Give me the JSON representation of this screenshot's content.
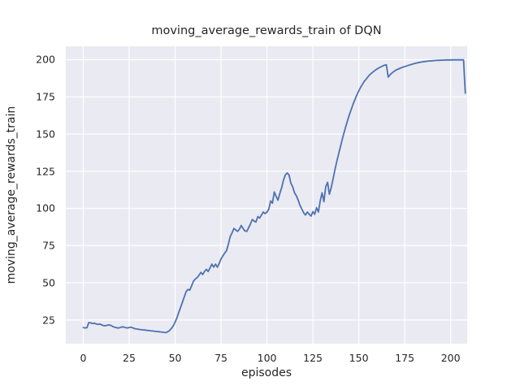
{
  "title": "moving_average_rewards_train of DQN",
  "chart_data": {
    "type": "line",
    "title": "moving_average_rewards_train of DQN",
    "xlabel": "episodes",
    "ylabel": "moving_average_rewards_train",
    "xlim": [
      -9.5,
      209
    ],
    "ylim": [
      9,
      209
    ],
    "xticks": [
      0,
      25,
      50,
      75,
      100,
      125,
      150,
      175,
      200
    ],
    "yticks": [
      25,
      50,
      75,
      100,
      125,
      150,
      175,
      200
    ],
    "grid": true,
    "legend": "none",
    "style": {
      "plot_bg": "#EAEAF2",
      "grid_color": "#FFFFFF",
      "line_color": "#4C72B0",
      "text_color": "#262626",
      "figure_bg": "#FFFFFF",
      "line_width": 1.8
    },
    "series": [
      {
        "name": "moving_average_rewards_train",
        "points": [
          [
            0,
            19.8
          ],
          [
            1,
            19.6
          ],
          [
            2,
            19.7
          ],
          [
            3,
            23.2
          ],
          [
            4,
            23.0
          ],
          [
            5,
            22.6
          ],
          [
            6,
            22.8
          ],
          [
            7,
            22.2
          ],
          [
            8,
            22.0
          ],
          [
            9,
            22.3
          ],
          [
            10,
            21.6
          ],
          [
            11,
            21.2
          ],
          [
            12,
            21.0
          ],
          [
            13,
            21.4
          ],
          [
            14,
            21.6
          ],
          [
            15,
            21.3
          ],
          [
            16,
            20.6
          ],
          [
            17,
            20.1
          ],
          [
            18,
            19.8
          ],
          [
            19,
            19.5
          ],
          [
            20,
            19.8
          ],
          [
            21,
            20.3
          ],
          [
            22,
            20.2
          ],
          [
            23,
            19.8
          ],
          [
            24,
            19.6
          ],
          [
            25,
            19.9
          ],
          [
            26,
            20.1
          ],
          [
            27,
            19.6
          ],
          [
            28,
            19.1
          ],
          [
            29,
            18.9
          ],
          [
            30,
            18.7
          ],
          [
            31,
            18.5
          ],
          [
            32,
            18.4
          ],
          [
            33,
            18.2
          ],
          [
            34,
            18.1
          ],
          [
            35,
            17.9
          ],
          [
            36,
            17.8
          ],
          [
            37,
            17.6
          ],
          [
            38,
            17.5
          ],
          [
            39,
            17.3
          ],
          [
            40,
            17.2
          ],
          [
            41,
            17.1
          ],
          [
            42,
            16.9
          ],
          [
            43,
            16.8
          ],
          [
            44,
            16.6
          ],
          [
            45,
            16.5
          ],
          [
            46,
            17.1
          ],
          [
            47,
            17.9
          ],
          [
            48,
            19.3
          ],
          [
            49,
            21.0
          ],
          [
            50,
            23.5
          ],
          [
            51,
            26.5
          ],
          [
            52,
            30.0
          ],
          [
            53,
            33.5
          ],
          [
            54,
            37.0
          ],
          [
            55,
            40.5
          ],
          [
            56,
            44.0
          ],
          [
            57,
            45.5
          ],
          [
            58,
            45.0
          ],
          [
            59,
            48.0
          ],
          [
            60,
            51.0
          ],
          [
            61,
            52.5
          ],
          [
            62,
            53.5
          ],
          [
            63,
            55.0
          ],
          [
            64,
            57.0
          ],
          [
            65,
            55.5
          ],
          [
            66,
            57.5
          ],
          [
            67,
            59.0
          ],
          [
            68,
            57.5
          ],
          [
            69,
            60.0
          ],
          [
            70,
            62.5
          ],
          [
            71,
            60.5
          ],
          [
            72,
            62.5
          ],
          [
            73,
            60.5
          ],
          [
            74,
            63.0
          ],
          [
            75,
            66.0
          ],
          [
            76,
            68.0
          ],
          [
            77,
            70.0
          ],
          [
            78,
            71.5
          ],
          [
            79,
            76.0
          ],
          [
            80,
            81.0
          ],
          [
            81,
            83.5
          ],
          [
            82,
            86.5
          ],
          [
            83,
            85.5
          ],
          [
            84,
            84.5
          ],
          [
            85,
            86.0
          ],
          [
            86,
            88.5
          ],
          [
            87,
            86.5
          ],
          [
            88,
            84.8
          ],
          [
            89,
            84.5
          ],
          [
            90,
            87.0
          ],
          [
            91,
            89.5
          ],
          [
            92,
            92.5
          ],
          [
            93,
            91.5
          ],
          [
            94,
            90.8
          ],
          [
            95,
            94.5
          ],
          [
            96,
            93.5
          ],
          [
            97,
            95.5
          ],
          [
            98,
            97.5
          ],
          [
            99,
            96.5
          ],
          [
            100,
            97.5
          ],
          [
            101,
            99.5
          ],
          [
            102,
            105.0
          ],
          [
            103,
            103.5
          ],
          [
            104,
            111.0
          ],
          [
            105,
            108.0
          ],
          [
            106,
            105.5
          ],
          [
            107,
            110.0
          ],
          [
            108,
            114.0
          ],
          [
            109,
            119.0
          ],
          [
            110,
            122.5
          ],
          [
            111,
            123.8
          ],
          [
            112,
            122.5
          ],
          [
            113,
            117.0
          ],
          [
            114,
            114.5
          ],
          [
            115,
            110.5
          ],
          [
            116,
            108.5
          ],
          [
            117,
            105.5
          ],
          [
            118,
            102.0
          ],
          [
            119,
            99.5
          ],
          [
            120,
            97.0
          ],
          [
            121,
            95.5
          ],
          [
            122,
            97.5
          ],
          [
            123,
            96.0
          ],
          [
            124,
            94.8
          ],
          [
            125,
            97.8
          ],
          [
            126,
            96.0
          ],
          [
            127,
            100.5
          ],
          [
            128,
            97.5
          ],
          [
            129,
            105.0
          ],
          [
            130,
            110.5
          ],
          [
            131,
            104.5
          ],
          [
            132,
            114.5
          ],
          [
            133,
            117.5
          ],
          [
            134,
            109.5
          ],
          [
            135,
            114.0
          ],
          [
            136,
            120.0
          ],
          [
            137,
            126.0
          ],
          [
            138,
            131.5
          ],
          [
            139,
            136.5
          ],
          [
            140,
            141.5
          ],
          [
            141,
            146.5
          ],
          [
            142,
            151.0
          ],
          [
            143,
            155.5
          ],
          [
            144,
            159.5
          ],
          [
            145,
            163.5
          ],
          [
            146,
            167.0
          ],
          [
            147,
            170.5
          ],
          [
            148,
            173.5
          ],
          [
            149,
            176.5
          ],
          [
            150,
            179.0
          ],
          [
            151,
            181.5
          ],
          [
            152,
            183.5
          ],
          [
            153,
            185.5
          ],
          [
            154,
            187.0
          ],
          [
            155,
            188.5
          ],
          [
            156,
            190.0
          ],
          [
            157,
            191.0
          ],
          [
            158,
            192.0
          ],
          [
            159,
            193.0
          ],
          [
            160,
            193.8
          ],
          [
            161,
            194.5
          ],
          [
            162,
            195.2
          ],
          [
            163,
            195.8
          ],
          [
            164,
            196.3
          ],
          [
            165,
            196.6
          ],
          [
            166,
            188.3
          ],
          [
            167,
            189.8
          ],
          [
            168,
            191.0
          ],
          [
            169,
            192.0
          ],
          [
            170,
            192.8
          ],
          [
            172,
            194.0
          ],
          [
            174,
            195.0
          ],
          [
            176,
            195.8
          ],
          [
            178,
            196.6
          ],
          [
            180,
            197.3
          ],
          [
            182,
            197.9
          ],
          [
            184,
            198.4
          ],
          [
            186,
            198.8
          ],
          [
            188,
            199.1
          ],
          [
            190,
            199.3
          ],
          [
            192,
            199.5
          ],
          [
            194,
            199.6
          ],
          [
            196,
            199.7
          ],
          [
            198,
            199.8
          ],
          [
            200,
            199.8
          ],
          [
            202,
            199.9
          ],
          [
            204,
            199.9
          ],
          [
            206,
            199.9
          ],
          [
            207,
            199.9
          ],
          [
            208,
            177.5
          ]
        ]
      }
    ]
  }
}
